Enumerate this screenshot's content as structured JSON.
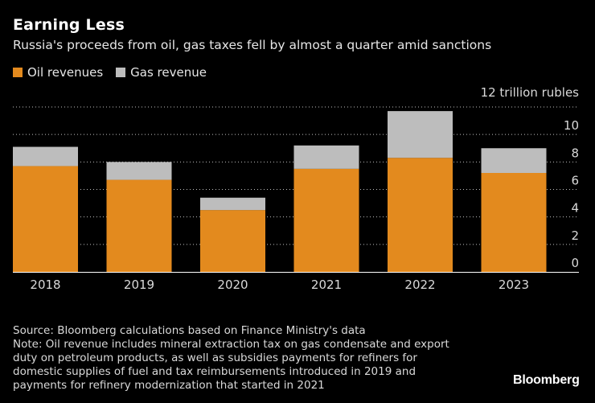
{
  "header": {
    "title": "Earning Less",
    "subtitle": "Russia's proceeds from oil, gas taxes fell by almost a quarter amid sanctions"
  },
  "colors": {
    "oil": "#e38a1e",
    "gas": "#bdbdbd",
    "grid": "#ffffff",
    "text": "#d9d9d9"
  },
  "chart_data": {
    "type": "bar",
    "stacked": true,
    "title": "Earning Less",
    "subtitle": "Russia's proceeds from oil, gas taxes fell by almost a quarter amid sanctions",
    "categories": [
      "2018",
      "2019",
      "2020",
      "2021",
      "2022",
      "2023"
    ],
    "series": [
      {
        "name": "Oil revenues",
        "values": [
          7.7,
          6.7,
          4.5,
          7.5,
          8.3,
          7.2
        ]
      },
      {
        "name": "Gas revenue",
        "values": [
          1.4,
          1.3,
          0.9,
          1.7,
          3.4,
          1.8
        ]
      }
    ],
    "ylabel": "12 trillion rubles",
    "ylim": [
      0,
      12
    ],
    "yticks": [
      0,
      2,
      4,
      6,
      8,
      10
    ],
    "ytick_labels": [
      "0",
      "2",
      "4",
      "6",
      "8",
      "10"
    ],
    "grid": true,
    "legend": "top-left"
  },
  "footer": {
    "lines": [
      "Source: Bloomberg calculations based on Finance Ministry's data",
      "Note: Oil revenue includes mineral extraction tax on gas condensate and export",
      "duty on petroleum products, as well as subsidies payments for refiners for",
      "domestic supplies of fuel and tax reimbursements introduced in 2019 and",
      "payments for refinery modernization that started in 2021"
    ],
    "brand": "Bloomberg"
  }
}
